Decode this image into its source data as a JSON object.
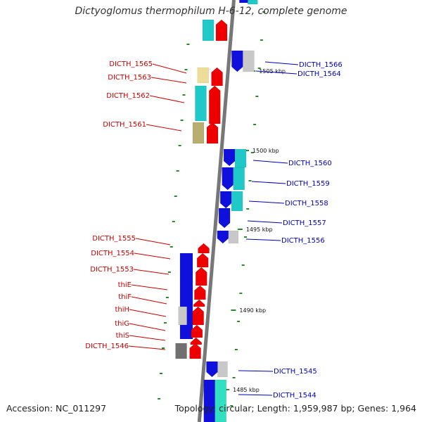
{
  "title": "Dictyoglomus thermophilum H-6-12, complete genome",
  "footer": {
    "accession": "Accession: NC_011297",
    "summary": "Topology: circular; Length: 1,959,987 bp; Genes: 1,964"
  },
  "colors": {
    "backbone": "#777777",
    "tick": "#2a8a2a",
    "label_left": "#cc0000",
    "label_right": "#0000bb",
    "red": "#ee0000",
    "blue": "#1010dd",
    "cyan": "#20c8c8",
    "teal": "#30e0c0",
    "gray": "#c8c8c8",
    "dgray": "#707070",
    "khaki": "#b8ae70",
    "tan": "#eedd99"
  },
  "kbp_labels": [
    "1505 kbp",
    "1500 kbp",
    "1495 kbp",
    "1490 kbp",
    "1485 kbp"
  ],
  "left_labels": [
    {
      "text": "DICTH_1565",
      "color": "red",
      "dir": "rev"
    },
    {
      "text": "DICTH_1563",
      "color": "red",
      "dir": "rev"
    },
    {
      "text": "DICTH_1562",
      "color": "red",
      "dir": "rev"
    },
    {
      "text": "DICTH_1561",
      "color": "red",
      "dir": "rev"
    },
    {
      "text": "DICTH_1555",
      "color": "red",
      "dir": "rev"
    },
    {
      "text": "DICTH_1554",
      "color": "red",
      "dir": "rev"
    },
    {
      "text": "DICTH_1553",
      "color": "red",
      "dir": "rev"
    },
    {
      "text": "thiE",
      "color": "red",
      "dir": "rev"
    },
    {
      "text": "thiF",
      "color": "red",
      "dir": "rev"
    },
    {
      "text": "thiH",
      "color": "red",
      "dir": "rev"
    },
    {
      "text": "thiG",
      "color": "red",
      "dir": "rev"
    },
    {
      "text": "thiS",
      "color": "red",
      "dir": "rev"
    },
    {
      "text": "DICTH_1546",
      "color": "red",
      "dir": "rev"
    }
  ],
  "right_labels": [
    {
      "text": "DICTH_1566",
      "color": "blue",
      "dir": "fwd"
    },
    {
      "text": "DICTH_1564",
      "color": "blue",
      "dir": "fwd"
    },
    {
      "text": "DICTH_1560",
      "color": "blue",
      "dir": "fwd"
    },
    {
      "text": "DICTH_1559",
      "color": "blue",
      "dir": "fwd"
    },
    {
      "text": "DICTH_1558",
      "color": "blue",
      "dir": "fwd"
    },
    {
      "text": "DICTH_1557",
      "color": "blue",
      "dir": "fwd"
    },
    {
      "text": "DICTH_1556",
      "color": "blue",
      "dir": "fwd"
    },
    {
      "text": "DICTH_1545",
      "color": "blue",
      "dir": "fwd"
    },
    {
      "text": "DICTH_1544",
      "color": "blue",
      "dir": "fwd"
    }
  ]
}
